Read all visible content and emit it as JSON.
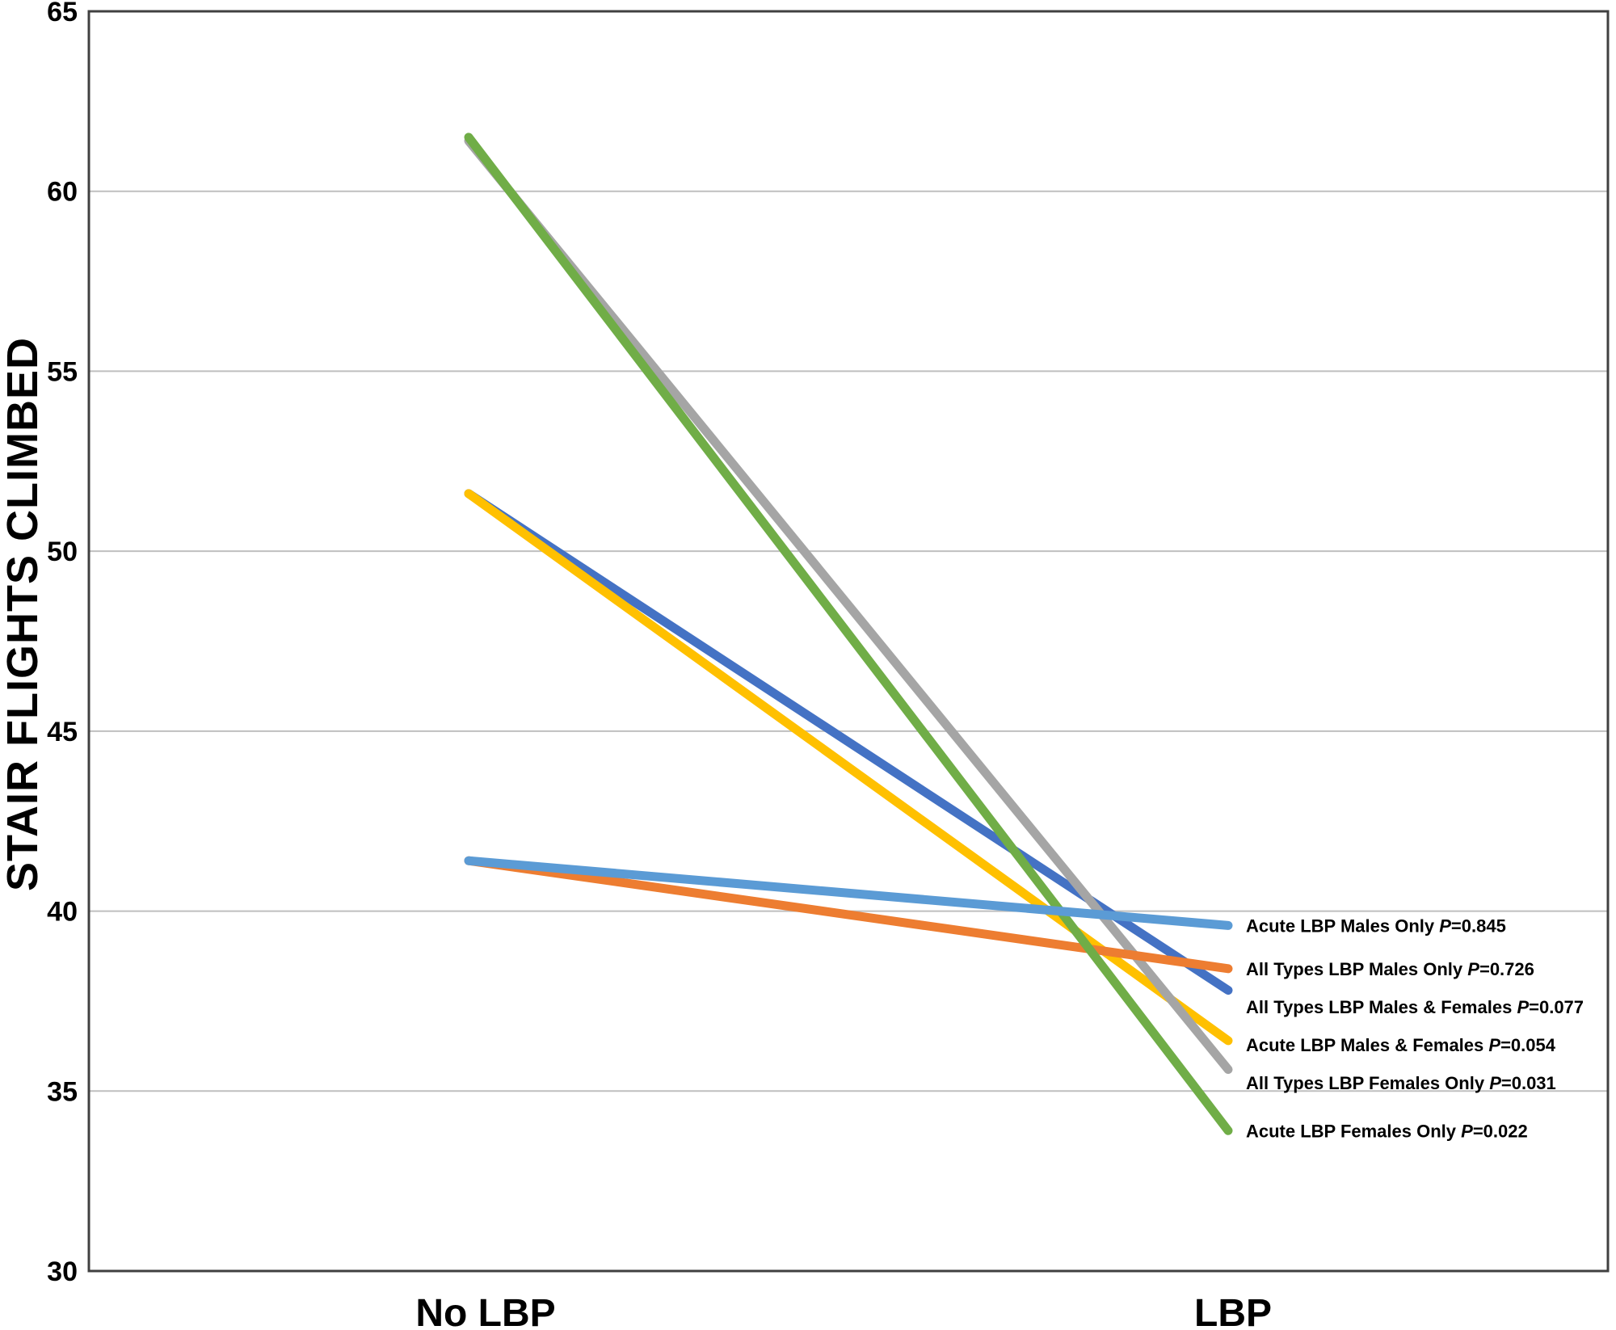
{
  "figure": {
    "background": "#ffffff",
    "axis_color": "#404040",
    "grid_color": "#BFBFBF",
    "text_color": "#000000"
  },
  "chart_data": {
    "type": "line",
    "subtype": "slope-chart",
    "title": "",
    "xlabel": "",
    "ylabel": "STAIR FLIGHTS CLIMBED",
    "categories": [
      "No LBP",
      "LBP"
    ],
    "ylim": [
      30,
      65
    ],
    "yticks": [
      65,
      60,
      55,
      50,
      45,
      40,
      35,
      30
    ],
    "grid": true,
    "legend_position": "right-end-labels",
    "series": [
      {
        "name": "Acute LBP Males Only",
        "p": "0.845",
        "color": "#5B9BD5",
        "values": [
          41.4,
          39.6
        ]
      },
      {
        "name": "All Types LBP Males Only",
        "p": "0.726",
        "color": "#ED7D31",
        "values": [
          41.4,
          38.4
        ]
      },
      {
        "name": "All Types LBP Males & Females",
        "p": "0.077",
        "color": "#4472C4",
        "values": [
          51.6,
          37.8
        ]
      },
      {
        "name": "Acute LBP Males & Females",
        "p": "0.054",
        "color": "#FFC000",
        "values": [
          51.6,
          36.4
        ]
      },
      {
        "name": "All Types LBP Females Only",
        "p": "0.031",
        "color": "#A5A5A5",
        "values": [
          61.4,
          35.6
        ]
      },
      {
        "name": "Acute LBP Females Only",
        "p": "0.022",
        "color": "#70AD47",
        "values": [
          61.5,
          33.9
        ]
      }
    ],
    "draw_order": [
      2,
      3,
      4,
      1,
      5,
      0
    ]
  }
}
